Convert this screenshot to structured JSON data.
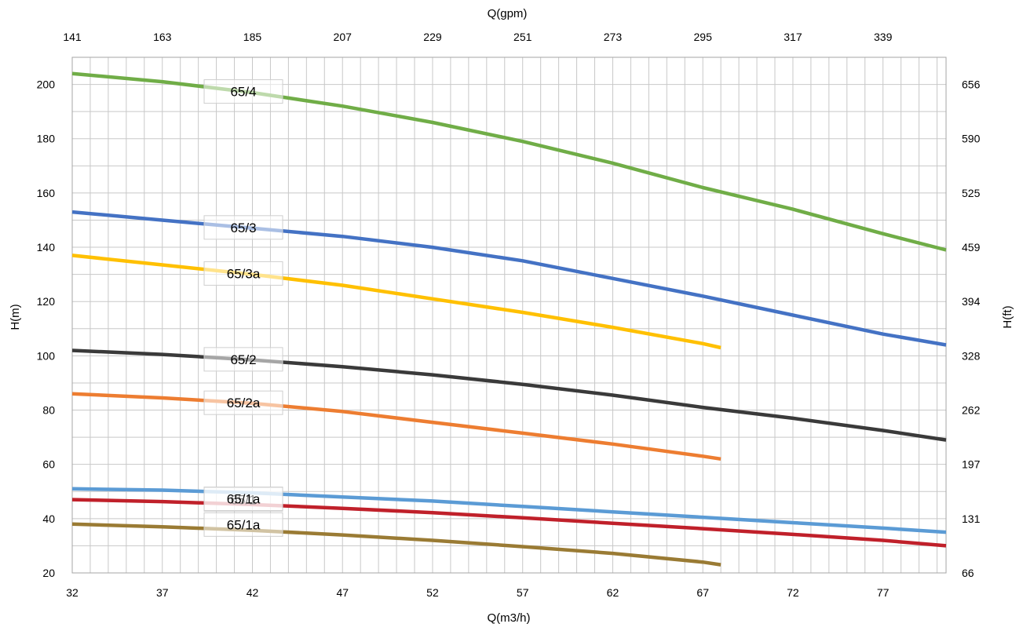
{
  "chart_data": {
    "type": "line",
    "xlabel_bottom": "Q(m3/h)",
    "xlabel_top": "Q(gpm)",
    "ylabel_left": "H(m)",
    "ylabel_right": "H(ft)",
    "xlim": [
      32,
      80.5
    ],
    "ylim": [
      20,
      210
    ],
    "x_ticks_bottom": [
      "32",
      "37",
      "42",
      "47",
      "52",
      "57",
      "62",
      "67",
      "72",
      "77"
    ],
    "x_ticks_top": [
      "141",
      "163",
      "185",
      "207",
      "229",
      "251",
      "273",
      "295",
      "317",
      "339"
    ],
    "y_ticks_left": [
      "20",
      "40",
      "60",
      "80",
      "100",
      "120",
      "140",
      "160",
      "180",
      "200"
    ],
    "y_ticks_right": [
      "66",
      "131",
      "197",
      "262",
      "328",
      "394",
      "459",
      "525",
      "590",
      "656"
    ],
    "grid": true,
    "series": [
      {
        "name": "65/4",
        "color": "#70ad47",
        "x": [
          32,
          37,
          42,
          47,
          52,
          57,
          62,
          67,
          72,
          77,
          80.5
        ],
        "y": [
          204,
          201,
          197,
          192,
          186,
          179,
          171,
          162,
          154,
          145,
          139
        ]
      },
      {
        "name": "65/3",
        "color": "#4472c4",
        "x": [
          32,
          37,
          42,
          47,
          52,
          57,
          62,
          67,
          72,
          77,
          80.5
        ],
        "y": [
          153,
          150,
          147,
          144,
          140,
          135,
          128.5,
          122,
          115,
          108,
          104
        ]
      },
      {
        "name": "65/3a",
        "color": "#ffc000",
        "x": [
          32,
          37,
          42,
          47,
          52,
          57,
          62,
          67,
          68
        ],
        "y": [
          137,
          133.5,
          130,
          126,
          121,
          116,
          110.5,
          104.5,
          103
        ]
      },
      {
        "name": "65/2",
        "color": "#3a3a3a",
        "x": [
          32,
          37,
          42,
          47,
          52,
          57,
          62,
          67,
          72,
          77,
          80.5
        ],
        "y": [
          102,
          100.5,
          98.5,
          96,
          93,
          89.5,
          85.5,
          81,
          77,
          72.5,
          69
        ]
      },
      {
        "name": "65/2a",
        "color": "#ed7d31",
        "x": [
          32,
          37,
          42,
          47,
          52,
          57,
          62,
          67,
          68
        ],
        "y": [
          86,
          84.5,
          82.5,
          79.5,
          75.5,
          71.5,
          67.5,
          63,
          62
        ]
      },
      {
        "name": "65/1",
        "color": "#5b9bd5",
        "x": [
          32,
          37,
          42,
          47,
          52,
          57,
          62,
          67,
          72,
          77,
          80.5
        ],
        "y": [
          51,
          50.5,
          49.5,
          48,
          46.5,
          44.5,
          42.5,
          40.5,
          38.5,
          36.5,
          35
        ]
      },
      {
        "name": "65/1a",
        "color": "#c0202a",
        "x": [
          32,
          37,
          42,
          47,
          52,
          57,
          62,
          67,
          72,
          77,
          80.5
        ],
        "y": [
          47,
          46.3,
          45.2,
          43.8,
          42.2,
          40.3,
          38.3,
          36.3,
          34.2,
          32,
          30
        ]
      },
      {
        "name": "65/1a",
        "color": "#9a7b34",
        "x": [
          32,
          37,
          42,
          47,
          52,
          57,
          62,
          67,
          68
        ],
        "y": [
          38,
          37,
          35.7,
          34,
          32,
          29.7,
          27.2,
          24,
          23
        ]
      }
    ]
  }
}
